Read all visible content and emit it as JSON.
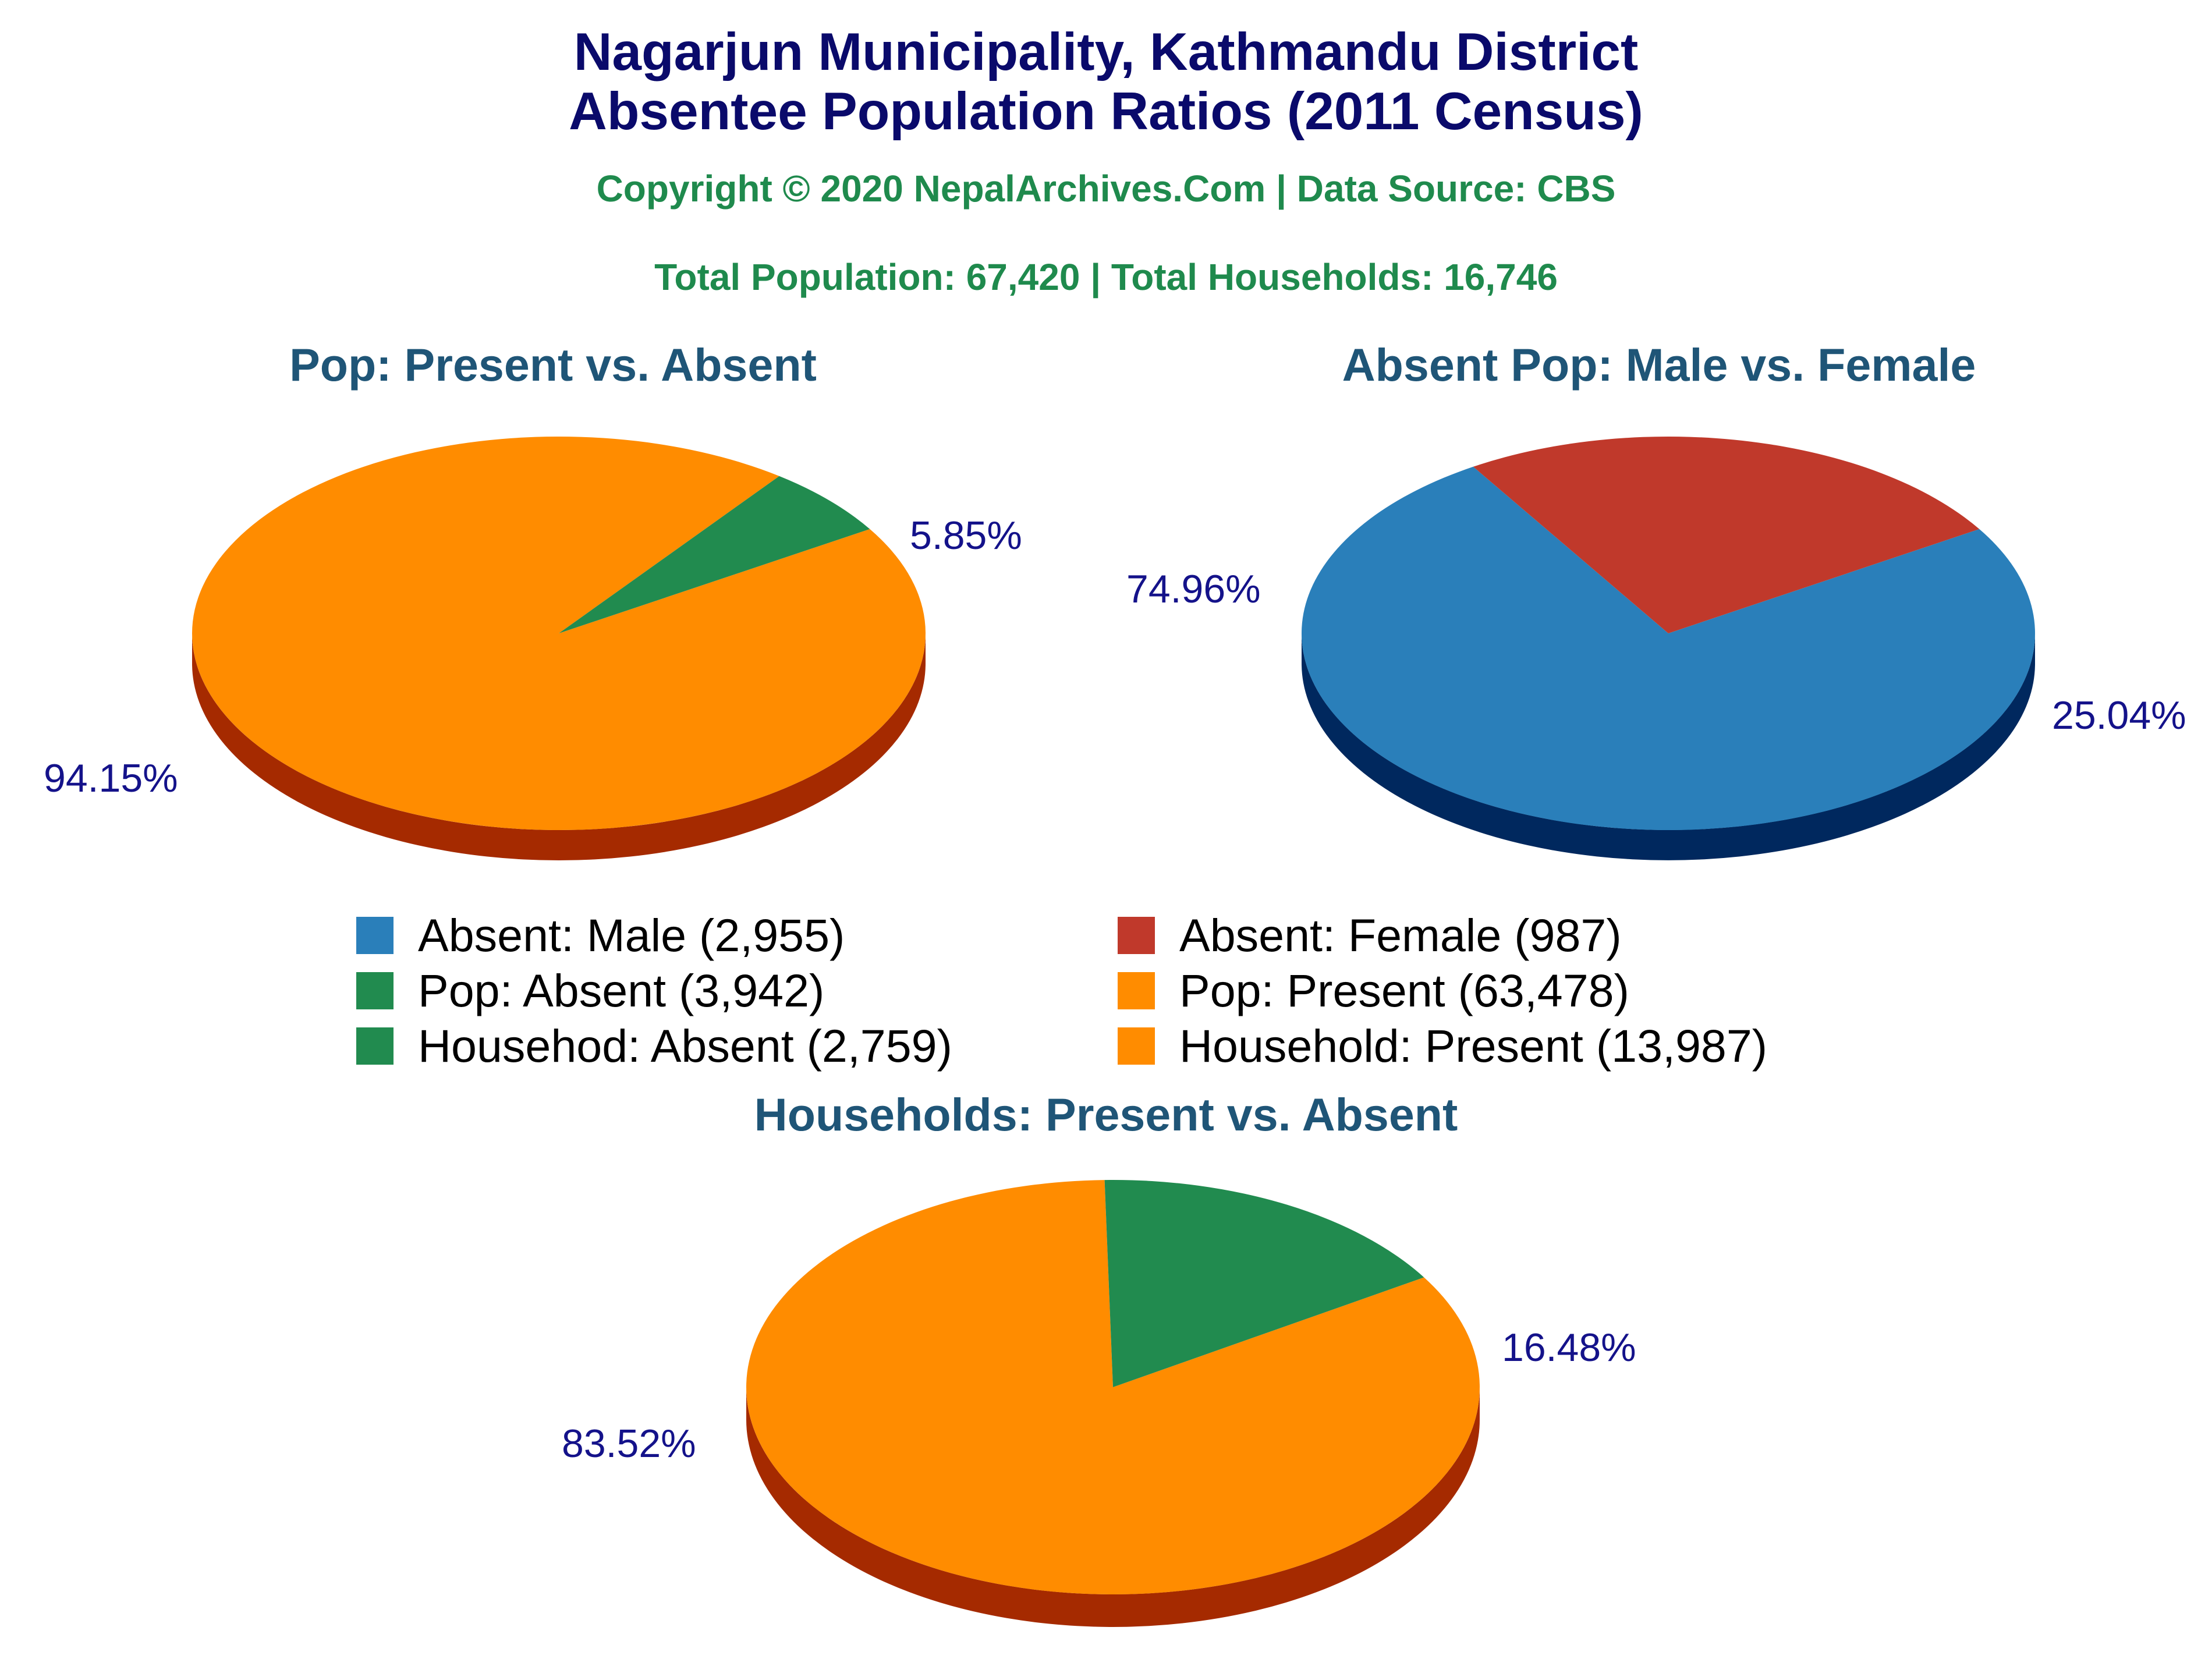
{
  "header": {
    "title_line1": "Nagarjun Municipality, Kathmandu District",
    "title_line2": "Absentee Population Ratios (2011 Census)",
    "copyright": "Copyright © 2020 NepalArchives.Com | Data Source: CBS",
    "totals": "Total Population: 67,420 | Total Households: 16,746"
  },
  "colors": {
    "present": "#ff8c00",
    "present_side": "#a52a00",
    "absent": "#218b4f",
    "absent_side": "#0b3a1a",
    "male": "#2a7fba",
    "male_side": "#00285e",
    "female": "#c0392b",
    "female_side": "#6b0000",
    "label": "#14128a"
  },
  "legend": [
    {
      "label": "Absent: Male (2,955)",
      "color": "#2a7fba"
    },
    {
      "label": "Absent: Female (987)",
      "color": "#c0392b"
    },
    {
      "label": "Pop: Absent (3,942)",
      "color": "#218b4f"
    },
    {
      "label": "Pop: Present (63,478)",
      "color": "#ff8c00"
    },
    {
      "label": "Househod: Absent (2,759)",
      "color": "#218b4f"
    },
    {
      "label": "Household: Present (13,987)",
      "color": "#ff8c00"
    }
  ],
  "chart_data": [
    {
      "type": "pie",
      "title": "Pop: Present vs. Absent",
      "slices": [
        {
          "name": "Pop: Present",
          "value": 63478,
          "percent": 94.15,
          "label": "94.15%"
        },
        {
          "name": "Pop: Absent",
          "value": 3942,
          "percent": 5.85,
          "label": "5.85%"
        }
      ]
    },
    {
      "type": "pie",
      "title": "Absent Pop: Male vs. Female",
      "slices": [
        {
          "name": "Absent: Male",
          "value": 2955,
          "percent": 74.96,
          "label": "74.96%"
        },
        {
          "name": "Absent: Female",
          "value": 987,
          "percent": 25.04,
          "label": "25.04%"
        }
      ]
    },
    {
      "type": "pie",
      "title": "Households: Present vs. Absent",
      "slices": [
        {
          "name": "Household: Present",
          "value": 13987,
          "percent": 83.52,
          "label": "83.52%"
        },
        {
          "name": "Household: Absent",
          "value": 2759,
          "percent": 16.48,
          "label": "16.48%"
        }
      ]
    }
  ]
}
